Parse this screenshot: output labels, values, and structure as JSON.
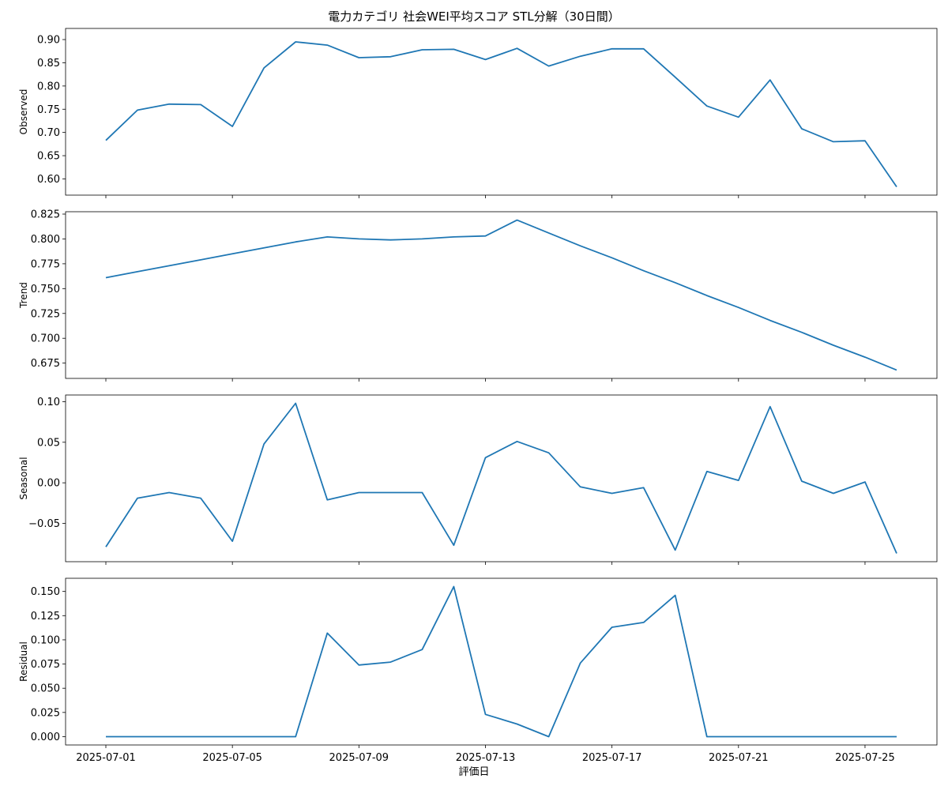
{
  "chart_data": {
    "type": "line",
    "title": "電力カテゴリ 社会WEI平均スコア STL分解（30日間）",
    "xlabel": "評価日",
    "x": [
      "2025-07-01",
      "2025-07-02",
      "2025-07-03",
      "2025-07-04",
      "2025-07-05",
      "2025-07-06",
      "2025-07-07",
      "2025-07-08",
      "2025-07-09",
      "2025-07-10",
      "2025-07-11",
      "2025-07-12",
      "2025-07-13",
      "2025-07-14",
      "2025-07-15",
      "2025-07-16",
      "2025-07-17",
      "2025-07-18",
      "2025-07-19",
      "2025-07-20",
      "2025-07-21",
      "2025-07-22",
      "2025-07-23",
      "2025-07-24",
      "2025-07-25",
      "2025-07-26"
    ],
    "xticks": [
      "2025-07-01",
      "2025-07-05",
      "2025-07-09",
      "2025-07-13",
      "2025-07-17",
      "2025-07-21",
      "2025-07-25"
    ],
    "line_color": "#1f77b4",
    "grid": false,
    "panels": [
      {
        "ylabel": "Observed",
        "ylim": [
          0.583,
          0.906
        ],
        "yticks": [
          "0.60",
          "0.65",
          "0.70",
          "0.75",
          "0.80",
          "0.85",
          "0.90"
        ],
        "values": [
          0.683,
          0.748,
          0.761,
          0.76,
          0.713,
          0.839,
          0.895,
          0.888,
          0.861,
          0.863,
          0.878,
          0.879,
          0.857,
          0.881,
          0.843,
          0.864,
          0.88,
          0.88,
          0.819,
          0.757,
          0.733,
          0.813,
          0.708,
          0.68,
          0.682,
          0.583
        ]
      },
      {
        "ylabel": "Trend",
        "ylim": [
          0.668,
          0.819
        ],
        "yticks": [
          "0.675",
          "0.700",
          "0.725",
          "0.750",
          "0.775",
          "0.800",
          "0.825"
        ],
        "values": [
          0.761,
          0.767,
          0.773,
          0.779,
          0.785,
          0.791,
          0.797,
          0.802,
          0.8,
          0.799,
          0.8,
          0.802,
          0.803,
          0.819,
          0.806,
          0.793,
          0.781,
          0.768,
          0.756,
          0.743,
          0.731,
          0.718,
          0.706,
          0.693,
          0.681,
          0.668
        ]
      },
      {
        "ylabel": "Seasonal",
        "ylim": [
          -0.087,
          0.098
        ],
        "yticks": [
          "−0.05",
          "0.00",
          "0.05",
          "0.10"
        ],
        "values": [
          -0.079,
          -0.019,
          -0.012,
          -0.019,
          -0.072,
          0.048,
          0.098,
          -0.021,
          -0.012,
          -0.012,
          -0.012,
          -0.077,
          0.031,
          0.051,
          0.037,
          -0.005,
          -0.013,
          -0.006,
          -0.083,
          0.014,
          0.003,
          0.094,
          0.002,
          -0.013,
          0.001,
          -0.087
        ]
      },
      {
        "ylabel": "Residual",
        "ylim": [
          0.0,
          0.155
        ],
        "yticks": [
          "0.000",
          "0.025",
          "0.050",
          "0.075",
          "0.100",
          "0.125",
          "0.150"
        ],
        "values": [
          0.0,
          0.0,
          0.0,
          0.0,
          0.0,
          0.0,
          0.0,
          0.107,
          0.074,
          0.077,
          0.09,
          0.155,
          0.023,
          0.013,
          0.0,
          0.076,
          0.113,
          0.118,
          0.146,
          0.0,
          0.0,
          0.0,
          0.0,
          0.0,
          0.0,
          0.0
        ]
      }
    ]
  }
}
